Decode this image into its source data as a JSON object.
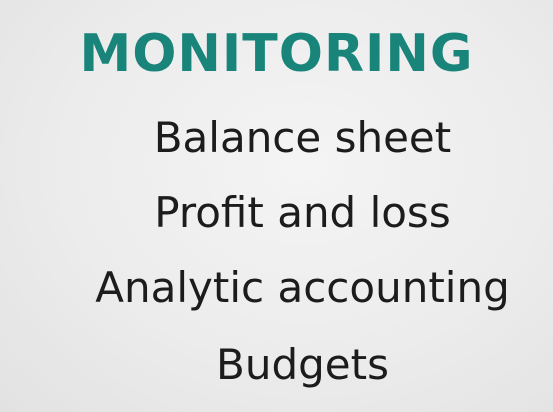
{
  "slide": {
    "title": "MONITORING",
    "title_color": "#18847a",
    "items": [
      "Balance sheet",
      "Profit and loss",
      "Analytic accounting",
      "Budgets"
    ]
  }
}
